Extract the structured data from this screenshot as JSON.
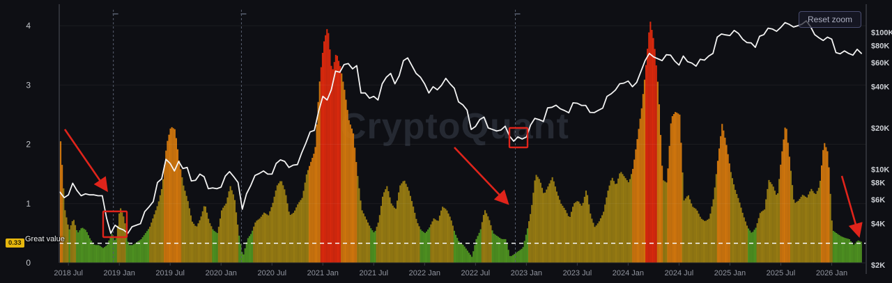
{
  "controls": {
    "reset_zoom_label": "Reset zoom"
  },
  "watermark": "CryptoQuant",
  "colors": {
    "background": "#0e0f14",
    "green": "#4f9421",
    "olive": "#9a7e13",
    "orange": "#d4790e",
    "red": "#de2a0e",
    "price_line": "#f4f4f4",
    "annotation_red": "#e0241b",
    "badge_bg": "#e6b70e",
    "axis_line": "#383b43",
    "x_label": "#9296a0",
    "y_label_left": "#c2c5ca",
    "y_label_right": "#cdd0d5"
  },
  "chart_data": {
    "type": "mixed",
    "start": "2018-06",
    "points_per_month": 2,
    "x_ticks": [
      {
        "mi": 1,
        "label": "2018 Jul"
      },
      {
        "mi": 7,
        "label": "2019 Jan"
      },
      {
        "mi": 13,
        "label": "2019 Jul"
      },
      {
        "mi": 19,
        "label": "2020 Jan"
      },
      {
        "mi": 25,
        "label": "2020 Jul"
      },
      {
        "mi": 31,
        "label": "2021 Jan"
      },
      {
        "mi": 37,
        "label": "2021 Jul"
      },
      {
        "mi": 43,
        "label": "2022 Jan"
      },
      {
        "mi": 49,
        "label": "2022 Jul"
      },
      {
        "mi": 55,
        "label": "2023 Jan"
      },
      {
        "mi": 61,
        "label": "2023 Jul"
      },
      {
        "mi": 67,
        "label": "2024 Jan"
      },
      {
        "mi": 73,
        "label": "2024 Jul"
      },
      {
        "mi": 79,
        "label": "2025 Jan"
      },
      {
        "mi": 85,
        "label": "2025 Jul"
      },
      {
        "mi": 91,
        "label": "2026 Jan"
      }
    ],
    "left_axis": {
      "ticks": [
        0,
        1,
        2,
        3,
        4
      ],
      "range": [
        0,
        4.34
      ]
    },
    "right_axis": {
      "scale": "log",
      "unit": "USD thousands",
      "ticks": [
        {
          "v": 2,
          "label": "$2K"
        },
        {
          "v": 4,
          "label": "$4K"
        },
        {
          "v": 6,
          "label": "$6K"
        },
        {
          "v": 8,
          "label": "$8K"
        },
        {
          "v": 10,
          "label": "$10K"
        },
        {
          "v": 20,
          "label": "$20K"
        },
        {
          "v": 40,
          "label": "$40K"
        },
        {
          "v": 60,
          "label": "$60K"
        },
        {
          "v": 80,
          "label": "$80K"
        },
        {
          "v": 100,
          "label": "$100K"
        }
      ]
    },
    "series": [
      {
        "name": "valuation-metric-bars",
        "type": "bar",
        "color_rule": "per-bar value thresholds",
        "thresholds": [
          0.6,
          1.58,
          3.2
        ],
        "values": [
          2.05,
          0.9,
          0.55,
          0.75,
          0.5,
          0.6,
          0.55,
          0.4,
          0.3,
          0.3,
          0.25,
          0.3,
          0.5,
          0.35,
          0.95,
          0.75,
          0.3,
          0.3,
          0.35,
          0.4,
          0.5,
          0.6,
          0.8,
          1.0,
          1.3,
          2.0,
          2.3,
          2.25,
          1.7,
          1.3,
          1.05,
          0.7,
          0.6,
          0.75,
          1.0,
          0.7,
          0.55,
          0.5,
          0.9,
          1.0,
          1.3,
          1.1,
          0.5,
          0.1,
          0.4,
          0.5,
          0.7,
          0.75,
          0.85,
          0.8,
          1.0,
          1.3,
          1.4,
          1.2,
          0.8,
          0.85,
          1.0,
          1.1,
          1.5,
          1.7,
          1.9,
          3.0,
          3.7,
          4.0,
          3.2,
          3.55,
          3.3,
          2.9,
          2.4,
          2.2,
          1.5,
          0.9,
          0.75,
          0.6,
          0.5,
          0.7,
          1.15,
          1.3,
          1.0,
          0.9,
          1.3,
          1.4,
          1.25,
          1.0,
          0.7,
          0.55,
          0.5,
          0.6,
          0.75,
          0.7,
          0.95,
          0.9,
          0.75,
          0.5,
          0.35,
          0.3,
          0.2,
          0.1,
          0.4,
          0.55,
          0.9,
          0.75,
          0.5,
          0.45,
          0.4,
          0.4,
          0.1,
          0.15,
          0.2,
          0.25,
          0.55,
          0.9,
          1.5,
          1.4,
          1.15,
          1.3,
          1.45,
          1.2,
          1.0,
          0.9,
          0.75,
          1.0,
          1.05,
          0.95,
          1.25,
          0.8,
          0.6,
          0.7,
          0.85,
          1.2,
          1.45,
          1.3,
          1.55,
          1.45,
          1.35,
          1.6,
          2.1,
          2.6,
          3.3,
          4.1,
          3.7,
          2.9,
          1.4,
          1.35,
          2.45,
          2.55,
          2.5,
          1.05,
          1.15,
          0.95,
          0.9,
          0.75,
          0.7,
          0.75,
          1.1,
          1.75,
          2.35,
          2.0,
          1.55,
          1.25,
          1.05,
          0.8,
          0.6,
          0.5,
          0.6,
          0.85,
          0.9,
          1.4,
          1.3,
          1.1,
          1.8,
          2.38,
          1.7,
          1.0,
          1.05,
          1.15,
          1.1,
          1.25,
          1.15,
          1.3,
          2.05,
          1.85,
          0.55,
          0.5,
          0.45,
          0.42,
          0.4,
          0.3,
          0.38,
          0.35
        ]
      },
      {
        "name": "btc-price-line",
        "type": "line",
        "axis": "right",
        "unit": "USD thousands (log scale)",
        "values": [
          6.8,
          6.2,
          6.5,
          7.9,
          7.0,
          6.4,
          6.6,
          6.5,
          6.5,
          6.4,
          6.4,
          4.4,
          3.4,
          3.9,
          3.7,
          3.6,
          3.4,
          3.8,
          3.9,
          4.0,
          4.9,
          5.3,
          5.8,
          8.0,
          8.5,
          11.8,
          11.0,
          9.7,
          11.4,
          10.1,
          10.3,
          8.2,
          8.3,
          9.2,
          8.8,
          7.2,
          7.3,
          7.2,
          7.4,
          8.9,
          9.6,
          8.8,
          8.0,
          5.1,
          6.6,
          7.6,
          9.0,
          9.3,
          9.7,
          9.2,
          9.2,
          11.0,
          11.7,
          11.4,
          10.3,
          10.7,
          10.8,
          13.1,
          15.5,
          18.7,
          19.2,
          26.4,
          34,
          32,
          38,
          52,
          51,
          58,
          59,
          54,
          57,
          36,
          36,
          33,
          34,
          32,
          42,
          47,
          50,
          42,
          48,
          62,
          65,
          57,
          50,
          47,
          42,
          36,
          40,
          38,
          41,
          46,
          42,
          39,
          31,
          29.5,
          27,
          19.5,
          20.5,
          23,
          24,
          20,
          19.5,
          19,
          19.3,
          20.6,
          17.5,
          16,
          17.2,
          16.6,
          17.2,
          21,
          23.5,
          23,
          22.3,
          28,
          28.3,
          29.3,
          27.6,
          26.8,
          25.8,
          30.5,
          30.3,
          29.2,
          29.2,
          26,
          25.9,
          26.9,
          27.9,
          34,
          35.5,
          37.8,
          42,
          42.5,
          44,
          40,
          43,
          51.5,
          62,
          70,
          66,
          64,
          62,
          68.5,
          68,
          61.5,
          57.5,
          67,
          61,
          59.5,
          56.5,
          63.5,
          62.5,
          67,
          70,
          92,
          97,
          95.5,
          94.5,
          103,
          98,
          89,
          84,
          83.5,
          77.5,
          93.5,
          96,
          107,
          105.5,
          101.5,
          108.5,
          117.5,
          114,
          109,
          111.5,
          114.5,
          121,
          110,
          96,
          91,
          87,
          92,
          89,
          71,
          69.5,
          73,
          70,
          68,
          75,
          70
        ]
      }
    ],
    "horizontal_line": {
      "value": 0.33,
      "label": "Great value",
      "axis_tag": "0.33",
      "style": "dashed-white"
    },
    "vertical_lines": [
      {
        "date": "2018-12",
        "mi": 6.3
      },
      {
        "date": "2020-03",
        "mi": 21.4
      },
      {
        "date": "2022-11",
        "mi": 53.7
      }
    ],
    "annotations": {
      "arrows": [
        {
          "from": [
            93,
            186
          ],
          "to": [
            152,
            272
          ]
        },
        {
          "from": [
            652,
            212
          ],
          "to": [
            727,
            291
          ]
        },
        {
          "from": [
            1208,
            253
          ],
          "to": [
            1232,
            337
          ]
        }
      ],
      "rects": [
        {
          "x": 148,
          "y": 304,
          "w": 34,
          "h": 37
        },
        {
          "x": 731,
          "y": 184,
          "w": 26,
          "h": 28
        }
      ]
    }
  }
}
